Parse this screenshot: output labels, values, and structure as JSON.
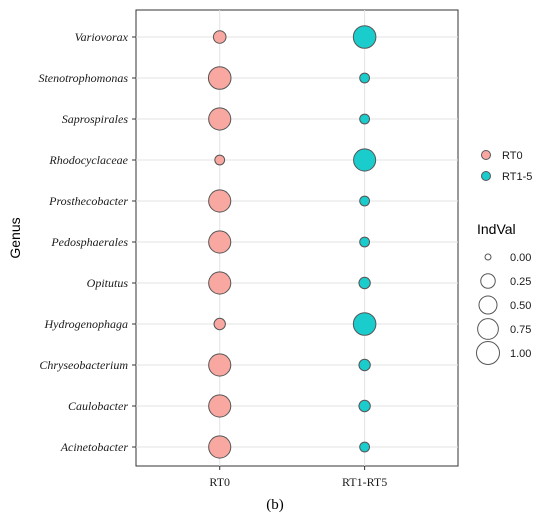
{
  "chart_data": {
    "type": "scatter",
    "subtype": "bubble",
    "ylabel": "Genus",
    "categories_x": [
      "RT0",
      "RT1-RT5"
    ],
    "categories_y": [
      "Variovorax",
      "Stenotrophomonas",
      "Saprospirales",
      "Rhodocyclaceae",
      "Prosthecobacter",
      "Pedosphaerales",
      "Opitutus",
      "Hydrogenophaga",
      "Chryseobacterium",
      "Caulobacter",
      "Acinetobacter"
    ],
    "series": [
      {
        "name": "RT0",
        "color": "#F8A8A0",
        "x": "RT0",
        "indval": [
          0.15,
          0.95,
          0.9,
          0.05,
          0.9,
          0.9,
          0.9,
          0.1,
          0.9,
          0.9,
          0.9
        ]
      },
      {
        "name": "RT1-5",
        "color": "#1BCCCC",
        "x": "RT1-RT5",
        "indval": [
          0.95,
          0.05,
          0.05,
          0.9,
          0.05,
          0.05,
          0.1,
          0.95,
          0.1,
          0.1,
          0.05
        ]
      }
    ],
    "size_legend": {
      "title": "IndVal",
      "values": [
        0.0,
        0.25,
        0.5,
        0.75,
        1.0
      ],
      "labels": [
        "0.00",
        "0.25",
        "0.50",
        "0.75",
        "1.00"
      ]
    },
    "grid": true,
    "legend_position": "right",
    "panel_label": "(b)"
  }
}
